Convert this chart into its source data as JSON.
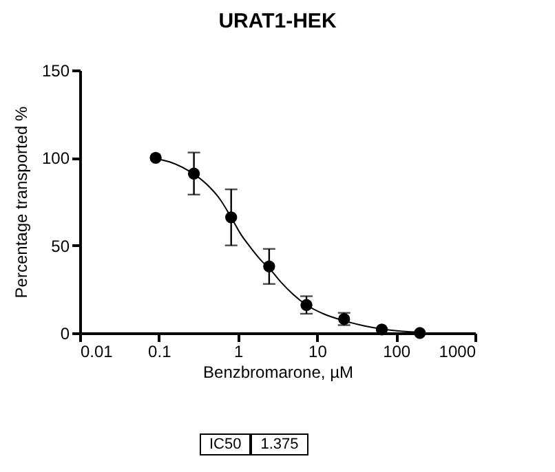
{
  "chart_data": {
    "type": "scatter",
    "title": "URAT1-HEK",
    "xlabel": "Benzbromarone, µM",
    "ylabel": "Percentage transported %",
    "log": "x",
    "xlim": [
      0.01,
      1000
    ],
    "xticks": [
      0.01,
      0.1,
      1,
      10,
      100,
      1000
    ],
    "ylim": [
      0,
      150
    ],
    "yticks": [
      0,
      50,
      100,
      150
    ],
    "grid": false,
    "series": [
      {
        "marker": "circle",
        "color": "#000000",
        "x": [
          0.091,
          0.277,
          0.82,
          2.48,
          7.35,
          22,
          66,
          200
        ],
        "values": [
          100,
          91,
          66,
          38,
          16,
          8,
          2,
          0
        ],
        "errors": [
          null,
          12,
          16,
          10,
          5,
          3.5,
          null,
          null
        ]
      },
      {
        "type": "line",
        "marker": "none",
        "color": "#000000",
        "line_style": "solid",
        "x": [
          0.09,
          0.15,
          0.25,
          0.4,
          0.6,
          0.82,
          1.1,
          1.375,
          2,
          2.48,
          3.5,
          5,
          7.35,
          12,
          22,
          40,
          66,
          120,
          200
        ],
        "values": [
          99.5,
          97,
          92,
          85,
          76,
          66,
          56,
          50,
          41,
          37,
          29,
          22,
          16,
          11,
          7,
          4,
          2.3,
          1,
          0.4
        ]
      }
    ],
    "annotations": [
      "IC50",
      "1.375"
    ]
  }
}
